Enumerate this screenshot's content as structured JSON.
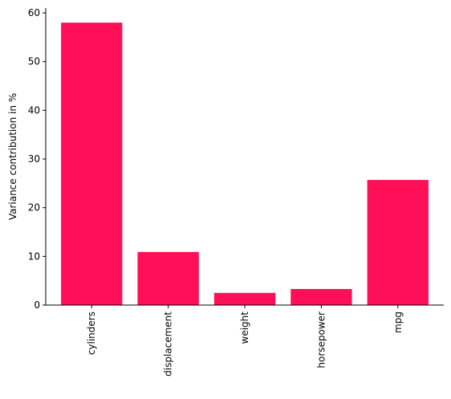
{
  "chart_data": {
    "type": "bar",
    "y_label": "Variance contribution in %",
    "categories": [
      "cylinders",
      "displacement",
      "weight",
      "horsepower",
      "mpg"
    ],
    "values": [
      58.0,
      10.9,
      2.5,
      3.3,
      25.7
    ],
    "color": "#ff0f57",
    "ylim": [
      0,
      61
    ],
    "yticks": [
      0,
      10,
      20,
      30,
      40,
      50,
      60
    ],
    "grid": false
  }
}
